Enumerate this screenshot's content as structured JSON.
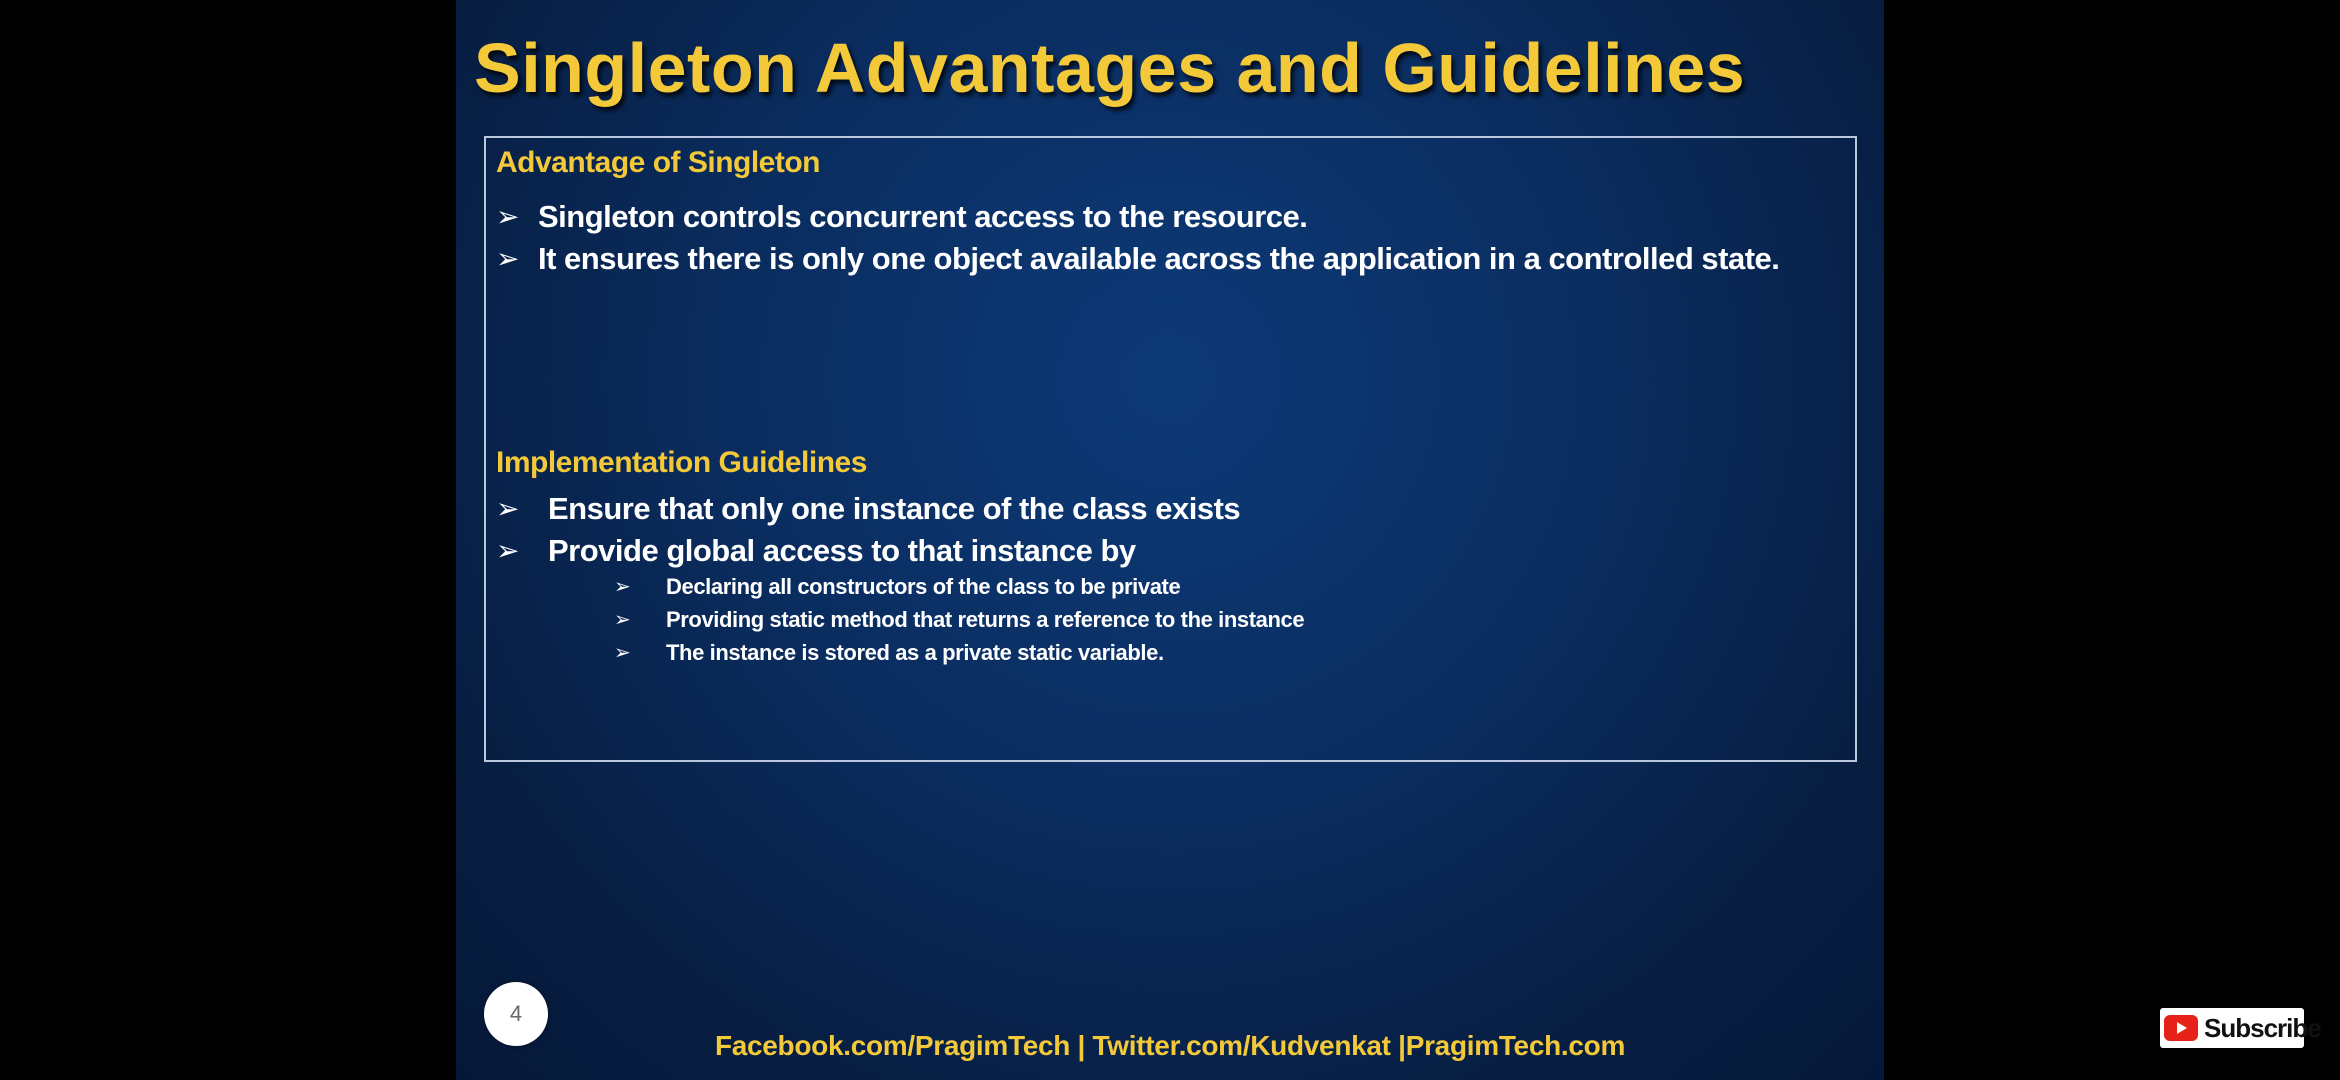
{
  "slide": {
    "title": "Singleton Advantages and Guidelines",
    "advantages": {
      "heading": "Advantage of Singleton",
      "bullets": [
        "Singleton controls concurrent access to the resource.",
        "It ensures there is only one object available across the application in a controlled state."
      ]
    },
    "guidelines": {
      "heading": "Implementation Guidelines",
      "bullets": [
        "Ensure that only one instance of the class exists",
        "Provide global access to that instance by"
      ],
      "sub_bullets": [
        "Declaring all constructors of the class to be private",
        "Providing static method that returns a reference to the instance",
        "The instance is stored as a private static variable."
      ]
    },
    "bullet_glyph": "➢",
    "page_number": "4",
    "footer": "Facebook.com/PragimTech | Twitter.com/Kudvenkat |PragimTech.com"
  },
  "overlay": {
    "subscribe_label": "Subscribe",
    "subscribe_icon": "youtube-icon"
  },
  "colors": {
    "title": "#f3c93a",
    "heading": "#f3c93a",
    "slide_background": "#0a2c5e",
    "text": "#ffffff",
    "subscribe_red": "#e62117"
  }
}
